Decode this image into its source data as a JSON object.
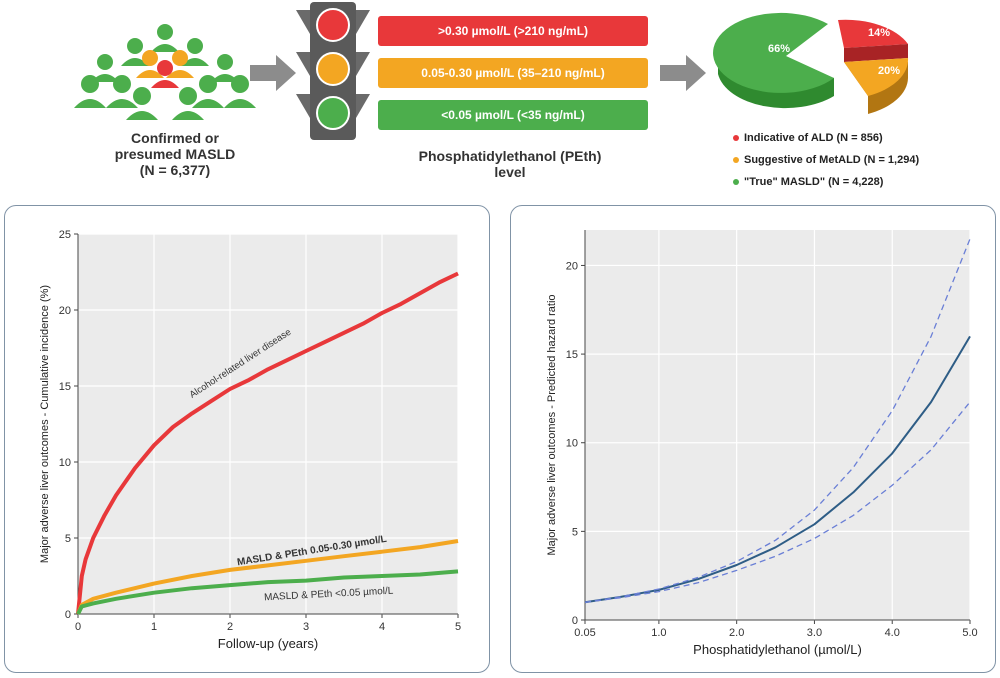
{
  "cohort": {
    "line1": "Confirmed or",
    "line2": "presumed MASLD",
    "line3": "(N = 6,377)"
  },
  "peth_levels": [
    {
      "label": ">0.30 µmol/L (>210 ng/mL)",
      "color": "#e8383a"
    },
    {
      "label": "0.05-0.30 µmol/L (35–210 ng/mL)",
      "color": "#f3a622"
    },
    {
      "label": "<0.05 µmol/L (<35 ng/mL)",
      "color": "#4cae4c"
    }
  ],
  "peth_label": {
    "line1": "Phosphatidylethanol (PEth)",
    "line2": "level"
  },
  "pie": {
    "slices": [
      {
        "label": "66%",
        "value": 66,
        "color": "#4cae4c"
      },
      {
        "label": "14%",
        "value": 14,
        "color": "#e8383a"
      },
      {
        "label": "20%",
        "value": 20,
        "color": "#f3a622"
      }
    ],
    "legend": [
      {
        "text": "Indicative of ALD (N = 856)",
        "color": "#e8383a"
      },
      {
        "text": "Suggestive of MetALD (N = 1,294)",
        "color": "#f3a622"
      },
      {
        "text": "\"True\" MASLD\" (N = 4,228)",
        "color": "#4cae4c"
      }
    ]
  },
  "chart_data": [
    {
      "type": "line",
      "xlabel": "Follow-up (years)",
      "ylabel": "Major adverse liver outcomes - Cumulative incidence (%)",
      "xlim": [
        0,
        5
      ],
      "ylim": [
        0,
        25
      ],
      "xticks": [
        "0",
        "1",
        "2",
        "3",
        "4",
        "5"
      ],
      "yticks": [
        "0",
        "5",
        "10",
        "15",
        "20",
        "25"
      ],
      "grid": true,
      "series": [
        {
          "name": "Alcohol-related liver disease",
          "color": "#e8383a",
          "x": [
            0,
            0.05,
            0.1,
            0.2,
            0.35,
            0.5,
            0.75,
            1.0,
            1.25,
            1.5,
            1.75,
            2.0,
            2.25,
            2.5,
            2.75,
            3.0,
            3.25,
            3.5,
            3.75,
            4.0,
            4.25,
            4.5,
            4.75,
            5.0
          ],
          "y": [
            0,
            2.5,
            3.6,
            5.0,
            6.5,
            7.8,
            9.6,
            11.1,
            12.3,
            13.2,
            14.0,
            14.8,
            15.4,
            16.1,
            16.7,
            17.3,
            17.9,
            18.5,
            19.1,
            19.8,
            20.4,
            21.1,
            21.8,
            22.4
          ]
        },
        {
          "name": "MASLD & PEth 0.05-0.30 µmol/L",
          "color": "#f3a622",
          "x": [
            0,
            0.05,
            0.2,
            0.5,
            1.0,
            1.5,
            2.0,
            2.5,
            3.0,
            3.5,
            4.0,
            4.5,
            5.0
          ],
          "y": [
            0,
            0.6,
            1.0,
            1.4,
            2.0,
            2.5,
            2.9,
            3.2,
            3.5,
            3.8,
            4.1,
            4.4,
            4.8
          ]
        },
        {
          "name": "MASLD & PEth <0.05 µmol/L",
          "color": "#4cae4c",
          "x": [
            0,
            0.05,
            0.2,
            0.5,
            1.0,
            1.5,
            2.0,
            2.5,
            3.0,
            3.5,
            4.0,
            4.5,
            5.0
          ],
          "y": [
            0,
            0.5,
            0.7,
            1.0,
            1.4,
            1.7,
            1.9,
            2.1,
            2.2,
            2.4,
            2.5,
            2.6,
            2.8
          ]
        }
      ]
    },
    {
      "type": "line",
      "xlabel": "Phosphatidylethanol (µmol/L)",
      "ylabel": "Major adverse liver outcomes - Predicted hazard ratio",
      "xlim": [
        0.05,
        5.0
      ],
      "ylim": [
        0,
        22
      ],
      "xticks": [
        "0.05",
        "1.0",
        "2.0",
        "3.0",
        "4.0",
        "5.0"
      ],
      "yticks": [
        "0",
        "5",
        "10",
        "15",
        "20"
      ],
      "grid": true,
      "series": [
        {
          "name": "",
          "style": "solid",
          "color": "#2e5d86",
          "x": [
            0.05,
            0.5,
            1.0,
            1.5,
            2.0,
            2.5,
            3.0,
            3.5,
            4.0,
            4.5,
            5.0
          ],
          "y": [
            1.0,
            1.3,
            1.7,
            2.3,
            3.1,
            4.1,
            5.4,
            7.2,
            9.4,
            12.3,
            16.0
          ]
        },
        {
          "name": "",
          "style": "dashed",
          "color": "#6a7fd6",
          "x": [
            0.05,
            0.5,
            1.0,
            1.5,
            2.0,
            2.5,
            3.0,
            3.5,
            4.0,
            4.5,
            5.0
          ],
          "y": [
            1.0,
            1.3,
            1.75,
            2.4,
            3.3,
            4.5,
            6.2,
            8.6,
            11.8,
            16.0,
            21.5
          ]
        },
        {
          "name": "",
          "style": "dashed",
          "color": "#6a7fd6",
          "x": [
            0.05,
            0.5,
            1.0,
            1.5,
            2.0,
            2.5,
            3.0,
            3.5,
            4.0,
            4.5,
            5.0
          ],
          "y": [
            1.0,
            1.25,
            1.6,
            2.1,
            2.8,
            3.6,
            4.6,
            5.9,
            7.6,
            9.6,
            12.3
          ]
        }
      ]
    }
  ]
}
